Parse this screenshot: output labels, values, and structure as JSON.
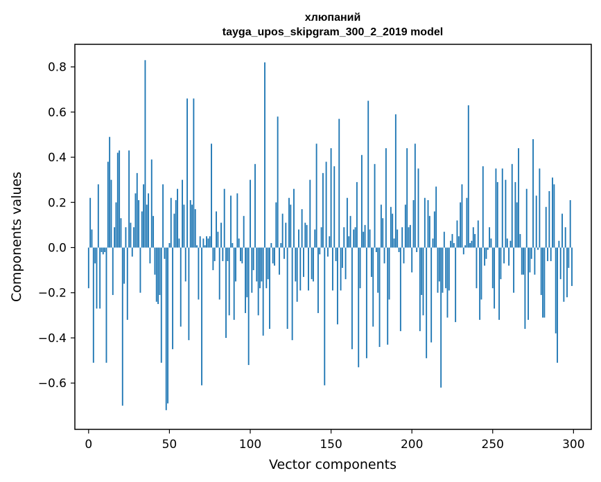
{
  "chart_data": {
    "type": "bar",
    "title": "хлюпаний",
    "subtitle": "tayga_upos_skipgram_300_2_2019 model",
    "xlabel": "Vector components",
    "ylabel": "Components values",
    "xlim": [
      -8.5,
      311
    ],
    "ylim": [
      -0.805,
      0.9
    ],
    "xticks": [
      0,
      50,
      100,
      150,
      200,
      250,
      300
    ],
    "yticks": [
      -0.6,
      -0.4,
      -0.2,
      0.0,
      0.2,
      0.4,
      0.6,
      0.8
    ],
    "xtick_labels": [
      "0",
      "50",
      "100",
      "150",
      "200",
      "250",
      "300"
    ],
    "ytick_labels": [
      "−0.6",
      "−0.4",
      "−0.2",
      "0.0",
      "0.2",
      "0.4",
      "0.6",
      "0.8"
    ],
    "bar_color": "#1f77b4",
    "grid": false,
    "values": [
      -0.18,
      0.22,
      0.08,
      -0.51,
      -0.07,
      -0.27,
      0.28,
      -0.27,
      -0.02,
      -0.03,
      -0.02,
      -0.51,
      0.38,
      0.49,
      0.3,
      -0.21,
      0.09,
      0.2,
      0.42,
      0.43,
      0.13,
      -0.7,
      -0.16,
      0.09,
      -0.32,
      0.43,
      0.11,
      -0.04,
      0.09,
      0.24,
      0.33,
      0.21,
      -0.2,
      0.16,
      0.28,
      0.83,
      0.19,
      0.24,
      -0.07,
      0.39,
      0.14,
      -0.12,
      -0.24,
      -0.25,
      -0.21,
      -0.51,
      0.28,
      -0.05,
      -0.72,
      -0.69,
      0.02,
      0.22,
      -0.45,
      0.15,
      0.21,
      0.26,
      0.04,
      -0.35,
      0.3,
      0.19,
      -0.15,
      0.66,
      -0.41,
      0.21,
      0.19,
      0.66,
      0.17,
      0.01,
      -0.23,
      0.05,
      -0.61,
      0.04,
      0.01,
      0.05,
      0.04,
      0.05,
      0.46,
      -0.1,
      -0.06,
      0.16,
      0.07,
      -0.23,
      0.11,
      -0.06,
      0.26,
      -0.4,
      -0.06,
      -0.3,
      0.23,
      0.02,
      -0.32,
      -0.15,
      0.24,
      0.04,
      -0.06,
      -0.07,
      0.14,
      -0.29,
      -0.22,
      -0.52,
      0.3,
      -0.2,
      -0.1,
      0.37,
      -0.15,
      -0.3,
      -0.18,
      -0.15,
      -0.39,
      0.82,
      -0.18,
      -0.14,
      -0.36,
      0.02,
      -0.07,
      -0.08,
      0.2,
      0.58,
      -0.12,
      0.02,
      0.15,
      -0.05,
      0.11,
      -0.36,
      0.22,
      0.19,
      -0.41,
      0.26,
      -0.15,
      -0.24,
      0.08,
      -0.19,
      0.17,
      -0.13,
      0.11,
      0.1,
      -0.19,
      0.3,
      -0.14,
      -0.15,
      0.08,
      0.46,
      -0.29,
      -0.03,
      0.09,
      0.33,
      -0.61,
      0.38,
      -0.04,
      0.05,
      0.44,
      -0.19,
      0.36,
      -0.06,
      -0.34,
      0.57,
      -0.19,
      -0.09,
      0.09,
      -0.14,
      0.22,
      0.05,
      0.14,
      -0.45,
      0.08,
      0.09,
      0.29,
      -0.53,
      -0.18,
      0.41,
      0.07,
      0.1,
      -0.49,
      0.65,
      0.08,
      -0.13,
      -0.35,
      0.37,
      -0.02,
      -0.2,
      -0.44,
      0.19,
      0.13,
      -0.07,
      0.44,
      -0.43,
      -0.23,
      0.18,
      0.15,
      0.04,
      0.59,
      0.08,
      -0.02,
      -0.37,
      0.09,
      -0.07,
      0.19,
      0.44,
      0.09,
      0.1,
      -0.11,
      0.21,
      0.46,
      -0.02,
      0.35,
      -0.37,
      -0.21,
      -0.3,
      0.22,
      -0.49,
      0.21,
      0.14,
      -0.42,
      0.04,
      0.16,
      0.27,
      -0.2,
      -0.15,
      -0.62,
      -0.2,
      0.07,
      -0.18,
      -0.31,
      -0.19,
      0.03,
      0.06,
      0.02,
      -0.33,
      0.12,
      0.05,
      0.2,
      0.28,
      -0.03,
      0.01,
      0.22,
      0.63,
      0.02,
      0.03,
      0.09,
      0.06,
      -0.18,
      0.12,
      -0.32,
      -0.23,
      0.36,
      -0.08,
      -0.05,
      -0.01,
      0.09,
      0.04,
      -0.18,
      -0.27,
      0.35,
      0.29,
      -0.32,
      -0.14,
      0.35,
      -0.07,
      0.3,
      0.04,
      -0.08,
      0.03,
      0.37,
      -0.2,
      0.29,
      0.2,
      0.44,
      0.06,
      -0.12,
      -0.12,
      -0.36,
      0.26,
      -0.32,
      -0.11,
      -0.05,
      0.48,
      -0.12,
      0.23,
      -0.01,
      0.35,
      -0.21,
      -0.31,
      -0.31,
      0.18,
      -0.06,
      0.25,
      -0.06,
      0.31,
      0.28,
      -0.38,
      -0.51,
      0.03,
      -0.14,
      0.15,
      -0.24,
      0.09,
      -0.22,
      -0.09,
      0.21,
      -0.17
    ]
  }
}
